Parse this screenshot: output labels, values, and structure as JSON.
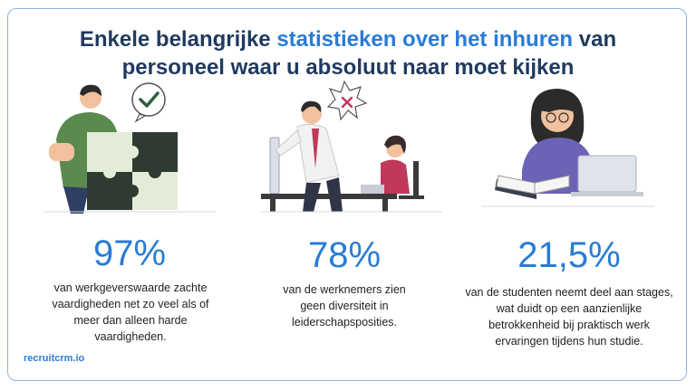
{
  "title": {
    "part1": "Enkele belangrijke ",
    "highlight": "statistieken over het inhuren",
    "part2": " van",
    "line2": "personeel waar u absoluut naar moet kijken"
  },
  "stats": [
    {
      "value": "97%",
      "description": "van werkgeverswaarde zachte vaardigheden net zo veel als of meer dan alleen harde vaardigheden."
    },
    {
      "value": "78%",
      "description": "van de werknemers zien geen diversiteit in leiderschapsposities."
    },
    {
      "value": "21,5%",
      "description": "van de studenten neemt deel aan stages, wat duidt op een aanzienlijke betrokkenheid bij praktisch werk ervaringen tijdens hun studie."
    }
  ],
  "brand": "recruitcrm.io",
  "colors": {
    "accent": "#2a7bd5",
    "title": "#1f3a5f",
    "border": "#8fb3dd"
  }
}
